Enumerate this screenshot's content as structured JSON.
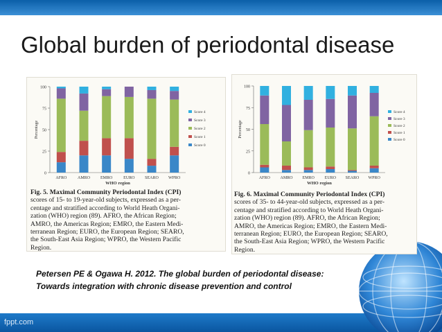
{
  "slide": {
    "title": "Global burden of periodontal disease",
    "footer": "fppt.com",
    "citation_line1": "Petersen PE & Ogawa H. 2012. The global burden of periodontal disease:",
    "citation_line2": "Towards integration with chronic disease prevention and control"
  },
  "figure5_caption": [
    "Fig. 5. Maximal Community Periodontal Index (CPI)",
    "scores of 15- to 19-year-old subjects, expressed as a per-",
    "centage and stratified according to World Heath Organi-",
    "zation (WHO) region (89). AFRO, the African Region;",
    "AMRO, the Americas Region; EMRO, the Eastern Medi-",
    "terranean Region; EURO, the European Region; SEARO,",
    "the South-East Asia Region; WPRO, the Western Pacific",
    "Region."
  ],
  "figure6_caption": [
    "Fig. 6. Maximal Community Periodontal Index (CPI)",
    "scores of 35- to 44-year-old subjects, expressed as a per-",
    "centage and stratified according to World Heath Organi-",
    "zation (WHO) region (89). AFRO, the African Region;",
    "AMRO, the Americas Region; EMRO, the Eastern Medi-",
    "terranean Region; EURO, the European Region; SEARO,",
    "the South-East Asia Region; WPRO, the Western Pacific",
    "Region."
  ],
  "colors": {
    "score0": "#3a87c8",
    "score1": "#c0504d",
    "score2": "#9bbb59",
    "score3": "#8064a2",
    "score4": "#31b0e0"
  },
  "chart_data": [
    {
      "type": "bar",
      "stacked": true,
      "categories": [
        "AFRO",
        "AMRO",
        "EMRO",
        "EURO",
        "SEARO",
        "WPRO"
      ],
      "xlabel": "WHO region",
      "ylabel": "Percentage",
      "ylim": [
        0,
        100
      ],
      "yticks": [
        "0",
        "25",
        "50",
        "75",
        "100"
      ],
      "legend": "right",
      "series": [
        {
          "name": "Score 0",
          "values": [
            12,
            20,
            20,
            16,
            8,
            20
          ]
        },
        {
          "name": "Score 1",
          "values": [
            12,
            17,
            20,
            24,
            8,
            10
          ]
        },
        {
          "name": "Score 2",
          "values": [
            62,
            35,
            49,
            48,
            70,
            55
          ]
        },
        {
          "name": "Score 3",
          "values": [
            12,
            20,
            8,
            12,
            10,
            10
          ]
        },
        {
          "name": "Score 4",
          "values": [
            2,
            8,
            3,
            0,
            4,
            5
          ]
        }
      ]
    },
    {
      "type": "bar",
      "stacked": true,
      "categories": [
        "AFRO",
        "AMRO",
        "EMRO",
        "EURO",
        "SEARO",
        "WPRO"
      ],
      "xlabel": "WHO region",
      "ylabel": "Percentage",
      "ylim": [
        0,
        100
      ],
      "yticks": [
        "0",
        "25",
        "50",
        "75",
        "100"
      ],
      "legend": "right",
      "series": [
        {
          "name": "Score 0",
          "values": [
            6,
            3,
            3,
            4,
            2,
            5
          ]
        },
        {
          "name": "Score 1",
          "values": [
            3,
            5,
            3,
            3,
            1,
            3
          ]
        },
        {
          "name": "Score 2",
          "values": [
            47,
            28,
            43,
            45,
            48,
            57
          ]
        },
        {
          "name": "Score 3",
          "values": [
            33,
            42,
            35,
            33,
            38,
            27
          ]
        },
        {
          "name": "Score 4",
          "values": [
            11,
            22,
            16,
            15,
            11,
            8
          ]
        }
      ]
    }
  ]
}
